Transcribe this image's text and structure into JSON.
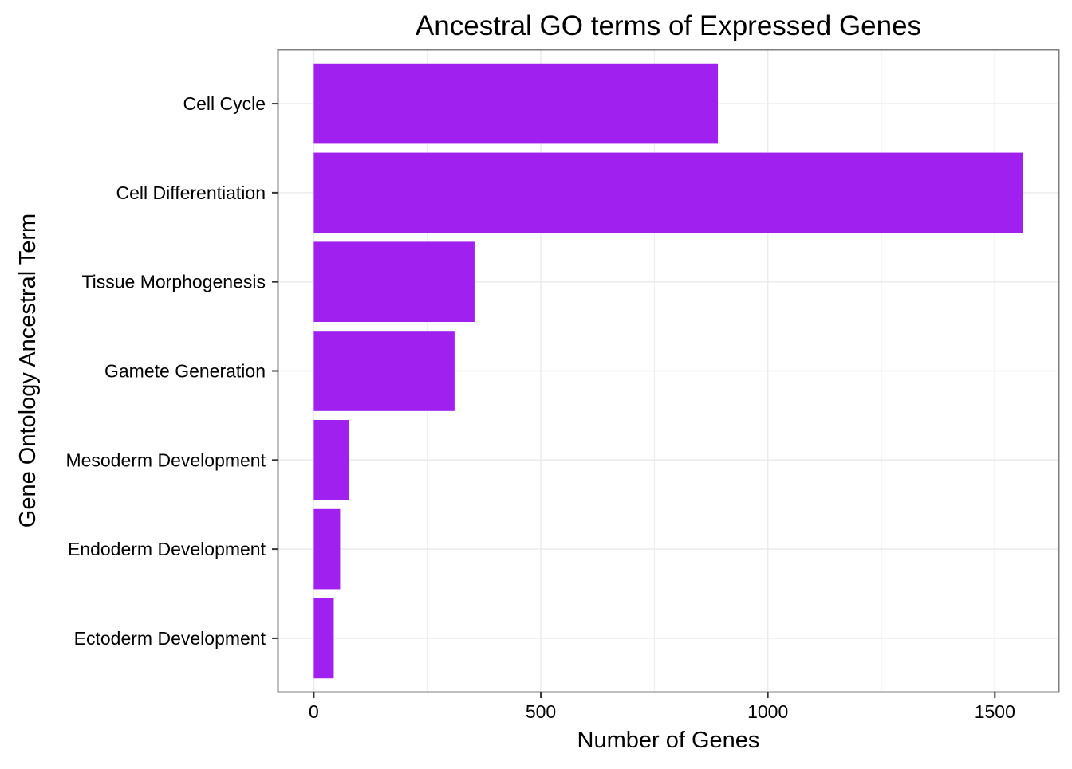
{
  "chart_data": {
    "type": "bar",
    "orientation": "horizontal",
    "title": "Ancestral GO terms of Expressed Genes",
    "xlabel": "Number of Genes",
    "ylabel": "Gene Ontology Ancestral Term",
    "categories": [
      "Cell Cycle",
      "Cell Differentiation",
      "Tissue Morphogenesis",
      "Gamete Generation",
      "Mesoderm Development",
      "Endoderm Development",
      "Ectoderm Development"
    ],
    "values": [
      890,
      1562,
      354,
      310,
      77,
      58,
      44
    ],
    "xlim": [
      -78,
      1640
    ],
    "xticks": [
      0,
      500,
      1000,
      1500
    ],
    "xtick_labels": [
      "0",
      "500",
      "1000",
      "1500"
    ],
    "grid": true,
    "bar_color": "#a020f0",
    "panel_border_color": "#7f7f7f",
    "grid_color": "#ebebeb"
  }
}
